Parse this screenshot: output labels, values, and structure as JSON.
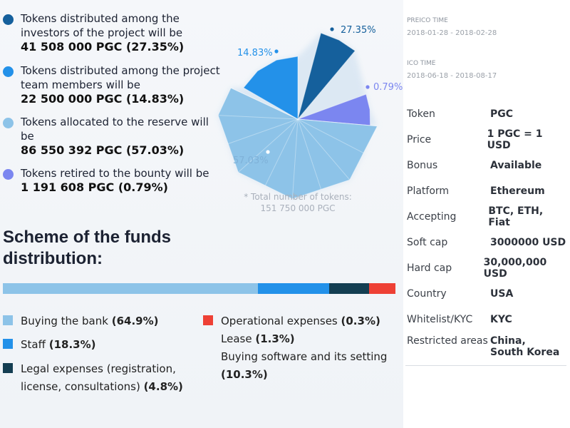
{
  "distribution": [
    {
      "text": "Tokens distributed among the investors of the project will be",
      "amount": "41 508 000 PGC (27.35%)",
      "color": "#15609c"
    },
    {
      "text": "Tokens distributed among the project team members will be",
      "amount": "22 500 000 PGC (14.83%)",
      "color": "#2391e9"
    },
    {
      "text": "Tokens allocated to the reserve will be",
      "amount": "86 550 392 PGC (57.03%)",
      "color": "#8dc3e8"
    },
    {
      "text": "Tokens retired to the bounty will be",
      "amount": "1 191 608 PGC (0.79%)",
      "color": "#7b86f0"
    }
  ],
  "chart_data": {
    "type": "pie",
    "labels": [
      "27.35%",
      "14.83%",
      "0.79%",
      "57.03%"
    ],
    "values": [
      27.35,
      14.83,
      0.79,
      57.03
    ],
    "colors": [
      "#15609c",
      "#2391e9",
      "#7b86f0",
      "#8dc3e8"
    ],
    "note_line1": "* Total number of tokens:",
    "note_line2": "151 750 000 PGC"
  },
  "scheme": {
    "title": "Scheme of the funds distribution:",
    "bar": [
      {
        "value": 64.9,
        "color": "#8dc3e8"
      },
      {
        "value": 18.3,
        "color": "#2391e9"
      },
      {
        "value": 10.0,
        "color": "#143e52"
      },
      {
        "value": 6.8,
        "color": "#ee4035"
      }
    ],
    "legend": [
      {
        "label": "Buying the bank",
        "pct": "(64.9%)",
        "color": "#8dc3e8"
      },
      {
        "label": "Staff",
        "pct": "(18.3%)",
        "color": "#2391e9"
      },
      {
        "label": "Legal expenses (registration,",
        "label2": "license, consultations)",
        "pct": "(4.8%)",
        "color": "#143e52"
      },
      {
        "label": "Operational expenses",
        "pct": "(0.3%)",
        "color": "#ee4035"
      }
    ],
    "extra_lease_label": "Lease",
    "extra_lease_pct": "(1.3%)",
    "extra_software_label": "Buying software and its setting",
    "extra_software_pct": "(10.3%)"
  },
  "dates": {
    "preico_label": "PREICO TIME",
    "preico_value": "2018-01-28 - 2018-02-28",
    "ico_label": "ICO TIME",
    "ico_value": "2018-06-18 - 2018-08-17"
  },
  "info": [
    {
      "key": "Token",
      "value": "PGC"
    },
    {
      "key": "Price",
      "value": "1 PGC = 1 USD"
    },
    {
      "key": "Bonus",
      "value": "Available"
    },
    {
      "key": "Platform",
      "value": "Ethereum"
    },
    {
      "key": "Accepting",
      "value": "BTC, ETH, Fiat"
    },
    {
      "key": "Soft cap",
      "value": "3000000 USD"
    },
    {
      "key": "Hard cap",
      "value": "30,000,000 USD"
    },
    {
      "key": "Country",
      "value": "USA"
    },
    {
      "key": "Whitelist/KYC",
      "value": "KYC"
    },
    {
      "key": "Restricted areas",
      "value": "China,\nSouth Korea"
    }
  ]
}
